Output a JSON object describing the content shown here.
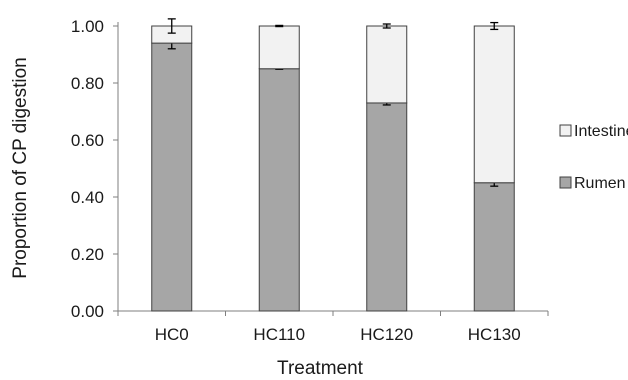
{
  "chart_data": {
    "type": "bar",
    "stacked": true,
    "categories": [
      "HC0",
      "HC110",
      "HC120",
      "HC130"
    ],
    "series": [
      {
        "name": "Rumen",
        "values": [
          0.94,
          0.85,
          0.73,
          0.45
        ],
        "errors": [
          0.02,
          0.002,
          0.007,
          0.012
        ],
        "color": "#a6a6a6"
      },
      {
        "name": "Intestine",
        "values": [
          0.06,
          0.15,
          0.27,
          0.55
        ],
        "errors": [
          0.025,
          0.002,
          0.007,
          0.012
        ],
        "color": "#f2f2f2"
      }
    ],
    "xlabel": "Treatment",
    "ylabel": "Proportion of CP digestion",
    "ylim": [
      0,
      1.0
    ],
    "yticks": [
      "0.00",
      "0.20",
      "0.40",
      "0.60",
      "0.80",
      "1.00"
    ],
    "grid": false,
    "legend_position": "right",
    "legend_order": [
      "Intestine",
      "Rumen"
    ],
    "bar_outline_color": "#404040",
    "axis_color": "#7f7f7f"
  }
}
